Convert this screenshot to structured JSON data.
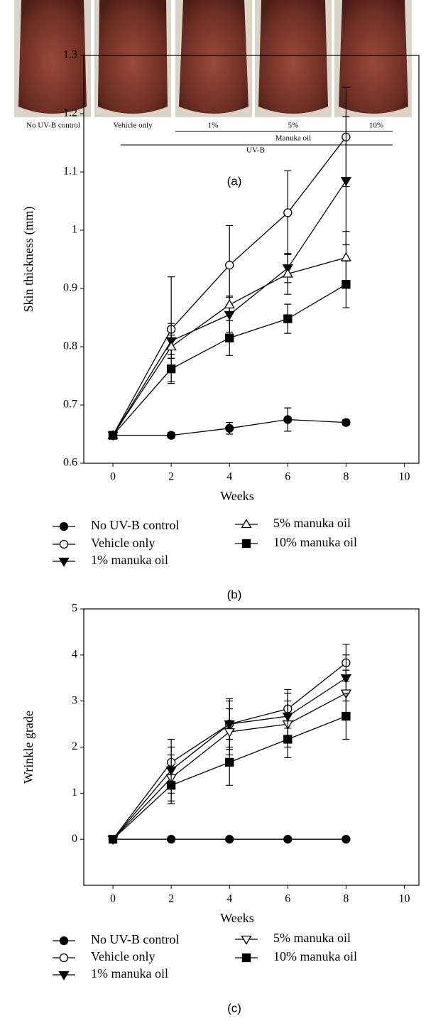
{
  "panel_a": {
    "labels": [
      "No UV-B control",
      "Vehicle only",
      "1%",
      "5%",
      "10%"
    ],
    "group_manuka": "Manuka oil",
    "group_uvb": "UV-B",
    "caption": "(a)"
  },
  "chart_data": [
    {
      "type": "line",
      "caption": "(b)",
      "x_label": "Weeks",
      "y_label": "Skin thickness (mm)",
      "x": [
        0,
        2,
        4,
        6,
        8
      ],
      "xlim": [
        -1,
        10.5
      ],
      "xticks": [
        0,
        2,
        4,
        6,
        8,
        10
      ],
      "ylim": [
        0.6,
        1.3
      ],
      "yticks": [
        0.6,
        0.7,
        0.8,
        0.9,
        1,
        1.1,
        1.2,
        1.3
      ],
      "grid": false,
      "series": [
        {
          "name": "No UV-B control",
          "color": "#000",
          "marker": "circle-filled",
          "values": [
            0.648,
            0.648,
            0.66,
            0.675,
            0.67
          ],
          "errors": [
            0,
            0.005,
            0.01,
            0.02,
            0.005
          ]
        },
        {
          "name": "Vehicle only",
          "color": "#000",
          "marker": "circle-open",
          "values": [
            0.648,
            0.83,
            0.94,
            1.03,
            1.16
          ],
          "errors": [
            0,
            0.09,
            0.068,
            0.072,
            0.085
          ]
        },
        {
          "name": "1% manuka oil",
          "color": "#000",
          "marker": "triangle-down-filled",
          "values": [
            0.648,
            0.81,
            0.855,
            0.935,
            1.085
          ],
          "errors": [
            0,
            0.03,
            0.03,
            0.025,
            0.11
          ]
        },
        {
          "name": "5% manuka oil",
          "color": "#000",
          "marker": "triangle-up-open",
          "values": [
            0.648,
            0.8,
            0.872,
            0.925,
            0.953
          ],
          "errors": [
            0,
            0.02,
            0.015,
            0.035,
            0.045
          ]
        },
        {
          "name": "10% manuka oil",
          "color": "#000",
          "marker": "square-filled",
          "values": [
            0.648,
            0.762,
            0.815,
            0.848,
            0.907
          ],
          "errors": [
            0,
            0.025,
            0.03,
            0.025,
            0.04
          ]
        }
      ]
    },
    {
      "type": "line",
      "caption": "(c)",
      "x_label": "Weeks",
      "y_label": "Wrinkle grade",
      "x": [
        0,
        2,
        4,
        6,
        8
      ],
      "xlim": [
        -1,
        10.5
      ],
      "xticks": [
        0,
        2,
        4,
        6,
        8,
        10
      ],
      "ylim": [
        -1,
        5
      ],
      "yticks": [
        0,
        1,
        2,
        3,
        4,
        5
      ],
      "grid": false,
      "series": [
        {
          "name": "No UV-B control",
          "color": "#000",
          "marker": "circle-filled",
          "values": [
            0,
            0,
            0,
            0,
            0
          ],
          "errors": [
            0,
            0,
            0,
            0,
            0
          ]
        },
        {
          "name": "Vehicle only",
          "color": "#000",
          "marker": "circle-open",
          "values": [
            0,
            1.67,
            2.5,
            2.83,
            3.83
          ],
          "errors": [
            0,
            0.5,
            0.55,
            0.42,
            0.4
          ]
        },
        {
          "name": "1% manuka oil",
          "color": "#000",
          "marker": "triangle-down-filled",
          "values": [
            0,
            1.5,
            2.5,
            2.67,
            3.5
          ],
          "errors": [
            0,
            0.5,
            0.5,
            0.5,
            0.5
          ]
        },
        {
          "name": "5% manuka oil",
          "color": "#000",
          "marker": "triangle-down-open",
          "values": [
            0,
            1.33,
            2.33,
            2.5,
            3.17
          ],
          "errors": [
            0,
            0.5,
            0.5,
            0.5,
            0.5
          ]
        },
        {
          "name": "10% manuka oil",
          "color": "#000",
          "marker": "square-filled",
          "values": [
            0,
            1.17,
            1.67,
            2.17,
            2.67
          ],
          "errors": [
            0,
            0.4,
            0.5,
            0.4,
            0.5
          ]
        }
      ]
    }
  ]
}
